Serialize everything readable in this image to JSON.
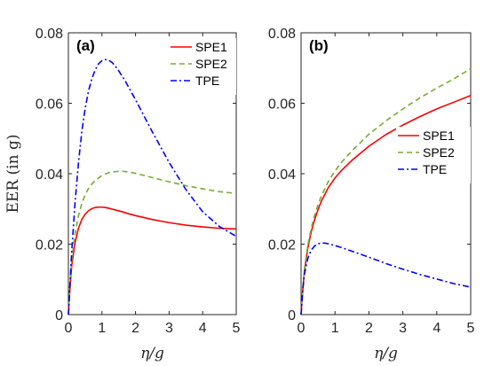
{
  "chart_data": [
    {
      "type": "line",
      "panel_label": "(a)",
      "xlabel": "η/g",
      "ylabel": "EER (in g)",
      "xlim": [
        0,
        5
      ],
      "ylim": [
        0,
        0.08
      ],
      "xticks": [
        0,
        1,
        2,
        3,
        4,
        5
      ],
      "yticks": [
        0,
        0.02,
        0.04,
        0.06,
        0.08
      ],
      "xtick_labels": [
        "0",
        "1",
        "2",
        "3",
        "4",
        "5"
      ],
      "ytick_labels": [
        "0",
        "0.02",
        "0.04",
        "0.06",
        "0.08"
      ],
      "grid": false,
      "legend_position": "top-right",
      "series": [
        {
          "name": "SPE1",
          "color": "#ff0000",
          "dash": "solid",
          "x": [
            0,
            0.05,
            0.1,
            0.2,
            0.3,
            0.4,
            0.5,
            0.6,
            0.7,
            0.8,
            0.9,
            1.0,
            1.1,
            1.2,
            1.4,
            1.6,
            1.8,
            2.0,
            2.5,
            3.0,
            3.5,
            4.0,
            4.5,
            5.0
          ],
          "y": [
            0,
            0.008,
            0.014,
            0.0205,
            0.0245,
            0.027,
            0.0285,
            0.0295,
            0.0301,
            0.0304,
            0.0305,
            0.0305,
            0.0304,
            0.0302,
            0.0297,
            0.0292,
            0.0286,
            0.0281,
            0.027,
            0.0261,
            0.0254,
            0.0249,
            0.0245,
            0.0243
          ]
        },
        {
          "name": "SPE2",
          "color": "#77ac30",
          "dash": "dashed",
          "x": [
            0,
            0.05,
            0.1,
            0.2,
            0.3,
            0.4,
            0.5,
            0.6,
            0.7,
            0.8,
            1.0,
            1.2,
            1.4,
            1.6,
            1.8,
            2.0,
            2.5,
            3.0,
            3.5,
            4.0,
            4.5,
            5.0
          ],
          "y": [
            0,
            0.009,
            0.0155,
            0.023,
            0.028,
            0.0315,
            0.034,
            0.0358,
            0.0371,
            0.0381,
            0.0395,
            0.0403,
            0.0406,
            0.0407,
            0.0405,
            0.0401,
            0.0389,
            0.0377,
            0.0366,
            0.0357,
            0.0349,
            0.0344
          ]
        },
        {
          "name": "TPE",
          "color": "#0000ff",
          "dash": "dashdot",
          "x": [
            0,
            0.1,
            0.2,
            0.3,
            0.4,
            0.5,
            0.6,
            0.7,
            0.8,
            0.9,
            1.0,
            1.1,
            1.2,
            1.3,
            1.4,
            1.5,
            1.7,
            2.0,
            2.5,
            3.0,
            3.5,
            4.0,
            4.5,
            5.0
          ],
          "y": [
            0,
            0.018,
            0.032,
            0.043,
            0.052,
            0.0585,
            0.0635,
            0.067,
            0.0695,
            0.0712,
            0.0721,
            0.0724,
            0.0722,
            0.0716,
            0.0705,
            0.0692,
            0.0662,
            0.061,
            0.0519,
            0.0432,
            0.0355,
            0.0292,
            0.025,
            0.0222
          ]
        }
      ]
    },
    {
      "type": "line",
      "panel_label": "(b)",
      "xlabel": "η/g",
      "ylabel": "",
      "xlim": [
        0,
        5
      ],
      "ylim": [
        0,
        0.08
      ],
      "xticks": [
        0,
        1,
        2,
        3,
        4,
        5
      ],
      "yticks": [
        0,
        0.02,
        0.04,
        0.06,
        0.08
      ],
      "xtick_labels": [
        "0",
        "1",
        "2",
        "3",
        "4",
        "5"
      ],
      "ytick_labels": [
        "0",
        "0.02",
        "0.04",
        "0.06",
        "0.08"
      ],
      "grid": false,
      "legend_position": "center-right",
      "series": [
        {
          "name": "SPE1",
          "color": "#ff0000",
          "dash": "solid",
          "x": [
            0,
            0.05,
            0.1,
            0.2,
            0.3,
            0.4,
            0.5,
            0.6,
            0.8,
            1.0,
            1.2,
            1.5,
            2.0,
            2.5,
            3.0,
            3.5,
            4.0,
            4.5,
            5.0
          ],
          "y": [
            0,
            0.007,
            0.0125,
            0.019,
            0.0235,
            0.027,
            0.0298,
            0.0322,
            0.036,
            0.0388,
            0.041,
            0.0438,
            0.0478,
            0.0511,
            0.0538,
            0.0562,
            0.0584,
            0.0603,
            0.0622
          ]
        },
        {
          "name": "SPE2",
          "color": "#77ac30",
          "dash": "dashed",
          "x": [
            0,
            0.05,
            0.1,
            0.2,
            0.3,
            0.4,
            0.5,
            0.6,
            0.8,
            1.0,
            1.2,
            1.5,
            2.0,
            2.5,
            3.0,
            3.5,
            4.0,
            4.5,
            5.0
          ],
          "y": [
            0,
            0.0075,
            0.013,
            0.0198,
            0.0245,
            0.0282,
            0.0312,
            0.0337,
            0.0377,
            0.0408,
            0.0433,
            0.0465,
            0.0512,
            0.055,
            0.0584,
            0.0615,
            0.0643,
            0.0669,
            0.0698
          ]
        },
        {
          "name": "TPE",
          "color": "#0000ff",
          "dash": "dashdot",
          "x": [
            0,
            0.05,
            0.1,
            0.2,
            0.3,
            0.4,
            0.5,
            0.6,
            0.7,
            0.8,
            1.0,
            1.2,
            1.5,
            2.0,
            2.5,
            3.0,
            3.5,
            4.0,
            4.5,
            5.0
          ],
          "y": [
            0,
            0.007,
            0.0115,
            0.016,
            0.0183,
            0.0195,
            0.0201,
            0.0203,
            0.0203,
            0.0201,
            0.0196,
            0.019,
            0.018,
            0.0163,
            0.0145,
            0.0129,
            0.0114,
            0.0101,
            0.0088,
            0.0078
          ]
        }
      ]
    }
  ]
}
